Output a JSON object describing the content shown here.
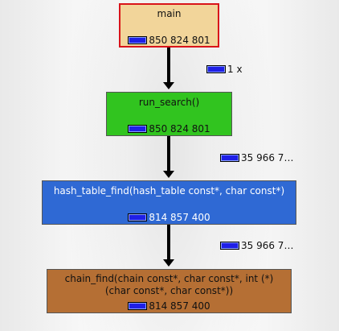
{
  "nodes": [
    {
      "label": "main",
      "cost": "850 824 801",
      "fill": "#f2d59a",
      "border": "#d9141a"
    },
    {
      "label": "run_search()",
      "cost": "850 824 801",
      "fill": "#31c41f",
      "border": "#555555"
    },
    {
      "label": "hash_table_find(hash_table const*, char const*)",
      "cost": "814 857 400",
      "fill": "#2f69d4",
      "border": "#555555"
    },
    {
      "label": "chain_find(chain const*, char const*, int (*)(char const*, char const*))",
      "cost": "814 857 400",
      "fill": "#b56f34",
      "border": "#555555"
    }
  ],
  "edges": [
    {
      "label": "1 x"
    },
    {
      "label": "35 966 7…"
    },
    {
      "label": "35 966 7…"
    }
  ],
  "icons": {
    "cost_meter": "blue-bar-meter-icon"
  }
}
